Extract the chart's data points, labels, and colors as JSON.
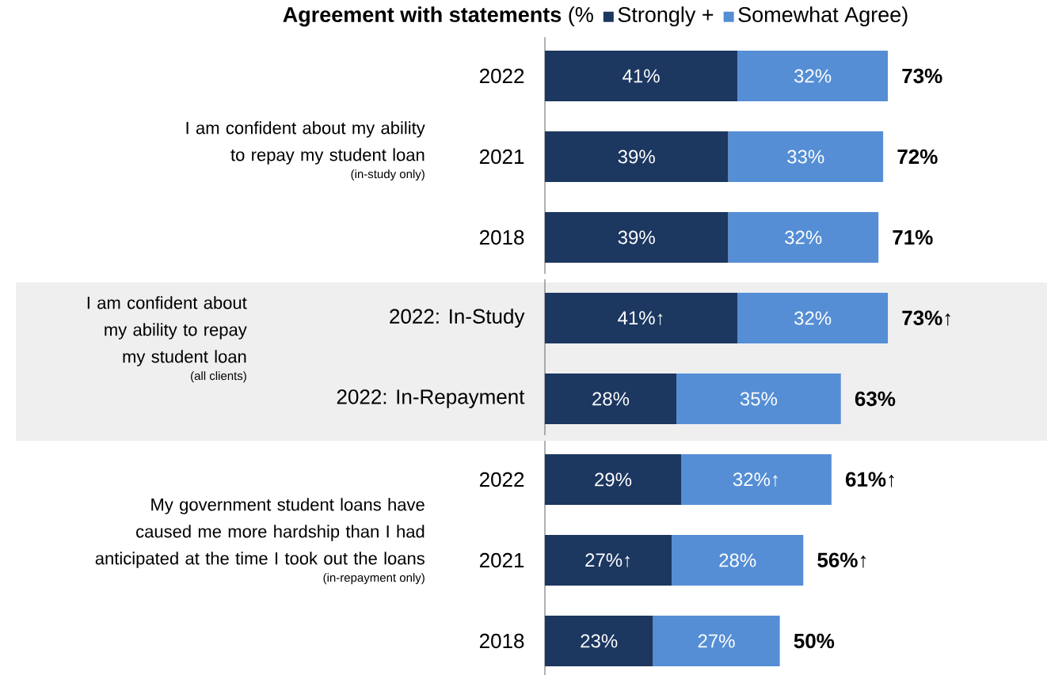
{
  "chart_data": {
    "type": "bar",
    "orientation": "horizontal",
    "stacked": true,
    "title": "**Agreement with statements** (%",
    "legend": "top",
    "categories": [
      "2022",
      "2021",
      "2018",
      "2022: In-Study",
      "2022: In-Repayment",
      "2022",
      "2021",
      "2018"
    ],
    "series": [
      {
        "name": "Strongly +",
        "color": "#1c3760",
        "values": [
          41,
          39,
          39,
          41,
          28,
          29,
          27,
          23
        ],
        "value_labels": [
          "41%",
          "39%",
          "39%",
          "41%↑",
          "28%",
          "29%",
          "27%↑",
          "23%"
        ]
      },
      {
        "name": "Somewhat Agree)",
        "color": "#558ed5",
        "values": [
          32,
          33,
          32,
          32,
          35,
          32,
          28,
          27
        ],
        "value_labels": [
          "32%",
          "33%",
          "32%",
          "32%",
          "35%",
          "32%↑",
          "28%",
          "27%"
        ]
      }
    ],
    "totals": [
      "73%",
      "72%",
      "71%",
      "73%↑",
      "63%",
      "61%↑",
      "56%↑",
      "50%"
    ],
    "bands": [
      {
        "axis": "y",
        "from": "2022: In-Study",
        "to": "2022: In-Repayment",
        "color": "#efefef"
      }
    ],
    "annotations": [
      "I am confident about my ability to repay my student loan",
      "(in-study only)",
      "I am confident about my ability to repay my student loan",
      "(all clients)",
      "My government student loans have caused me more hardship than I had anticipated at the time I took out the loans",
      "(in-repayment only)"
    ]
  }
}
